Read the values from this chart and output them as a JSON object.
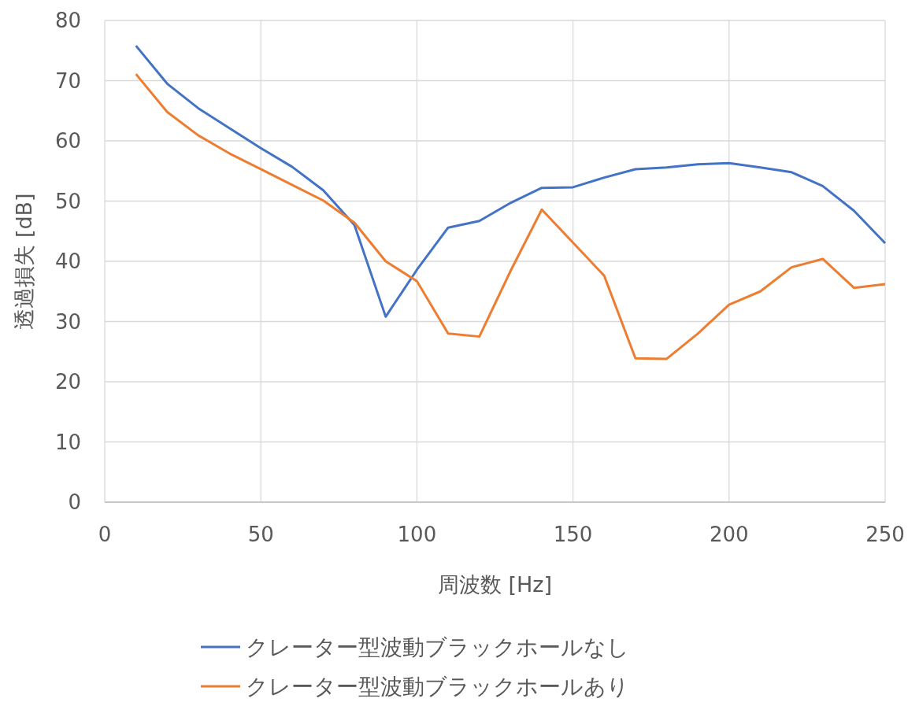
{
  "chart_data": {
    "type": "line",
    "xlabel": "周波数 [Hz]",
    "ylabel": "透過損失 [dB]",
    "x": [
      10,
      20,
      30,
      40,
      50,
      60,
      70,
      80,
      90,
      100,
      110,
      120,
      130,
      140,
      150,
      160,
      170,
      180,
      190,
      200,
      210,
      220,
      230,
      240,
      250
    ],
    "series": [
      {
        "name": "クレーター型波動ブラックホールなし",
        "color": "#4472c4",
        "values": [
          75.8,
          69.5,
          65.4,
          62.1,
          58.8,
          55.7,
          51.8,
          46.0,
          30.8,
          38.6,
          45.6,
          46.7,
          49.7,
          52.2,
          52.3,
          53.9,
          55.3,
          55.6,
          56.1,
          56.3,
          55.6,
          54.8,
          52.5,
          48.4,
          43.0
        ]
      },
      {
        "name": "クレーター型波動ブラックホールあり",
        "color": "#ed7d31",
        "values": [
          71.1,
          64.8,
          60.9,
          57.9,
          55.3,
          52.7,
          50.1,
          46.4,
          40.0,
          36.7,
          28.0,
          27.5,
          38.4,
          48.6,
          43.1,
          37.6,
          23.9,
          23.8,
          28.0,
          32.8,
          35.0,
          39.0,
          40.4,
          35.6,
          36.2
        ]
      }
    ],
    "xlim": [
      0,
      250
    ],
    "xticks": [
      0,
      50,
      100,
      150,
      200,
      250
    ],
    "ylim": [
      0,
      80
    ],
    "yticks": [
      0,
      10,
      20,
      30,
      40,
      50,
      60,
      70,
      80
    ],
    "grid": true,
    "legend": "bottom",
    "line_style": "solid"
  }
}
